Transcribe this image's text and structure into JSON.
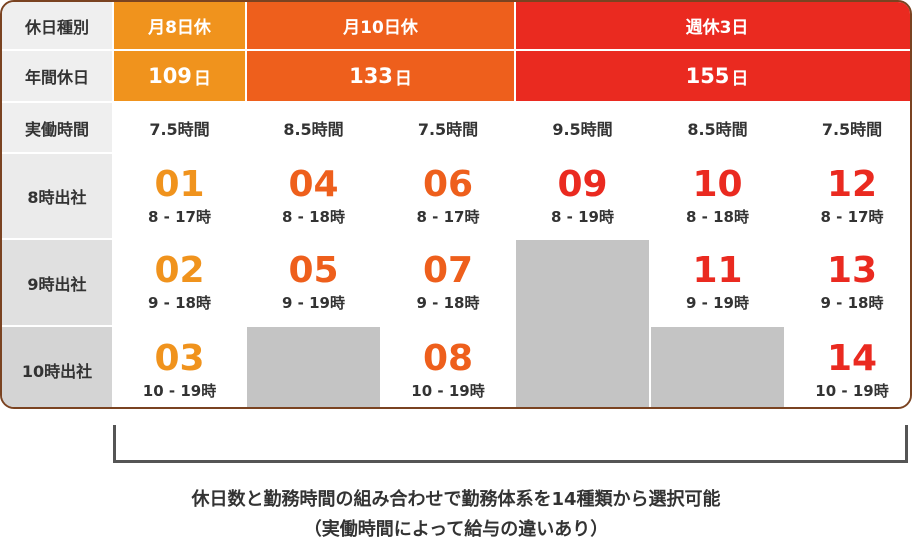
{
  "colors": {
    "orange": "#f0931d",
    "deep_orange": "#ee5f1c",
    "red": "#ea2a20"
  },
  "row_labels": {
    "type": "休日種別",
    "days": "年間休日",
    "hours": "実働時間",
    "start8": "8時出社",
    "start9": "9時出社",
    "start10": "10時出社"
  },
  "groups": [
    {
      "label": "月8日休",
      "days": "109",
      "unit": "日"
    },
    {
      "label": "月10日休",
      "days": "133",
      "unit": "日"
    },
    {
      "label": "週休3日",
      "days": "155",
      "unit": "日"
    }
  ],
  "work_hours": [
    "7.5時間",
    "8.5時間",
    "7.5時間",
    "9.5時間",
    "8.5時間",
    "7.5時間"
  ],
  "patterns": [
    {
      "num": "01",
      "time": "8 - 17時"
    },
    {
      "num": "02",
      "time": "9 - 18時"
    },
    {
      "num": "03",
      "time": "10 - 19時"
    },
    {
      "num": "04",
      "time": "8 - 18時"
    },
    {
      "num": "05",
      "time": "9 - 19時"
    },
    {
      "num": "06",
      "time": "8 - 17時"
    },
    {
      "num": "07",
      "time": "9 - 18時"
    },
    {
      "num": "08",
      "time": "10 - 19時"
    },
    {
      "num": "09",
      "time": "8 - 19時"
    },
    {
      "num": "10",
      "time": "8 - 18時"
    },
    {
      "num": "11",
      "time": "9 - 19時"
    },
    {
      "num": "12",
      "time": "8 - 17時"
    },
    {
      "num": "13",
      "time": "9 - 18時"
    },
    {
      "num": "14",
      "time": "10 - 19時"
    }
  ],
  "caption": {
    "line1": "休日数と勤務時間の組み合わせで勤務体系を14種類から選択可能",
    "line2": "（実働時間によって給与の違いあり）"
  }
}
